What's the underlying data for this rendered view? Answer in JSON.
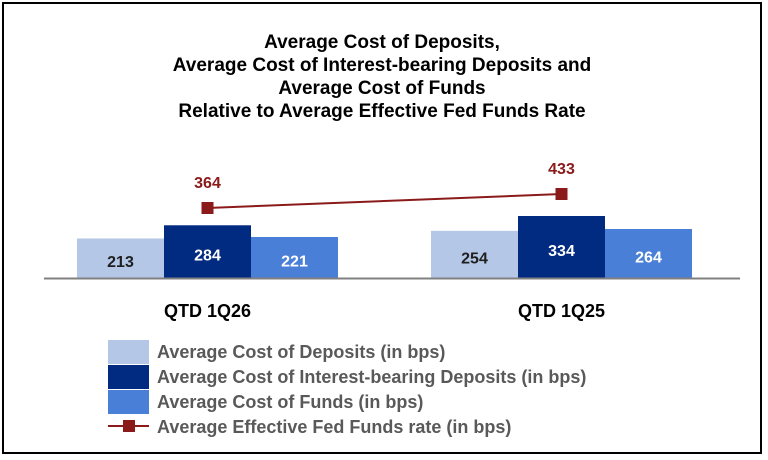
{
  "chart_data": {
    "type": "bar",
    "title": [
      "Average Cost of Deposits,",
      "Average Cost of Interest-bearing Deposits and",
      "Average Cost of Funds",
      "Relative to Average Effective Fed Funds Rate"
    ],
    "categories": [
      "QTD 1Q26",
      "QTD 1Q25"
    ],
    "series": [
      {
        "name": "Average Cost of Deposits (in bps)",
        "kind": "bar",
        "color": "#b4c7e7",
        "label_color": "#1f1f1f",
        "values": [
          213,
          254
        ]
      },
      {
        "name": "Average Cost of Interest-bearing Deposits (in bps)",
        "kind": "bar",
        "color": "#002b80",
        "label_color": "#ffffff",
        "values": [
          284,
          334
        ]
      },
      {
        "name": "Average Cost of Funds (in bps)",
        "kind": "bar",
        "color": "#4a7fd8",
        "label_color": "#ffffff",
        "values": [
          221,
          264
        ]
      },
      {
        "name": "Average Effective Fed Funds rate (in bps)",
        "kind": "line",
        "color": "#8b1a1a",
        "label_color": "#8b1a1a",
        "values": [
          364,
          433
        ]
      }
    ],
    "legend_position": "bottom-left",
    "legend_text_color": "#595959",
    "axis_color": "#808080",
    "grid": false
  }
}
